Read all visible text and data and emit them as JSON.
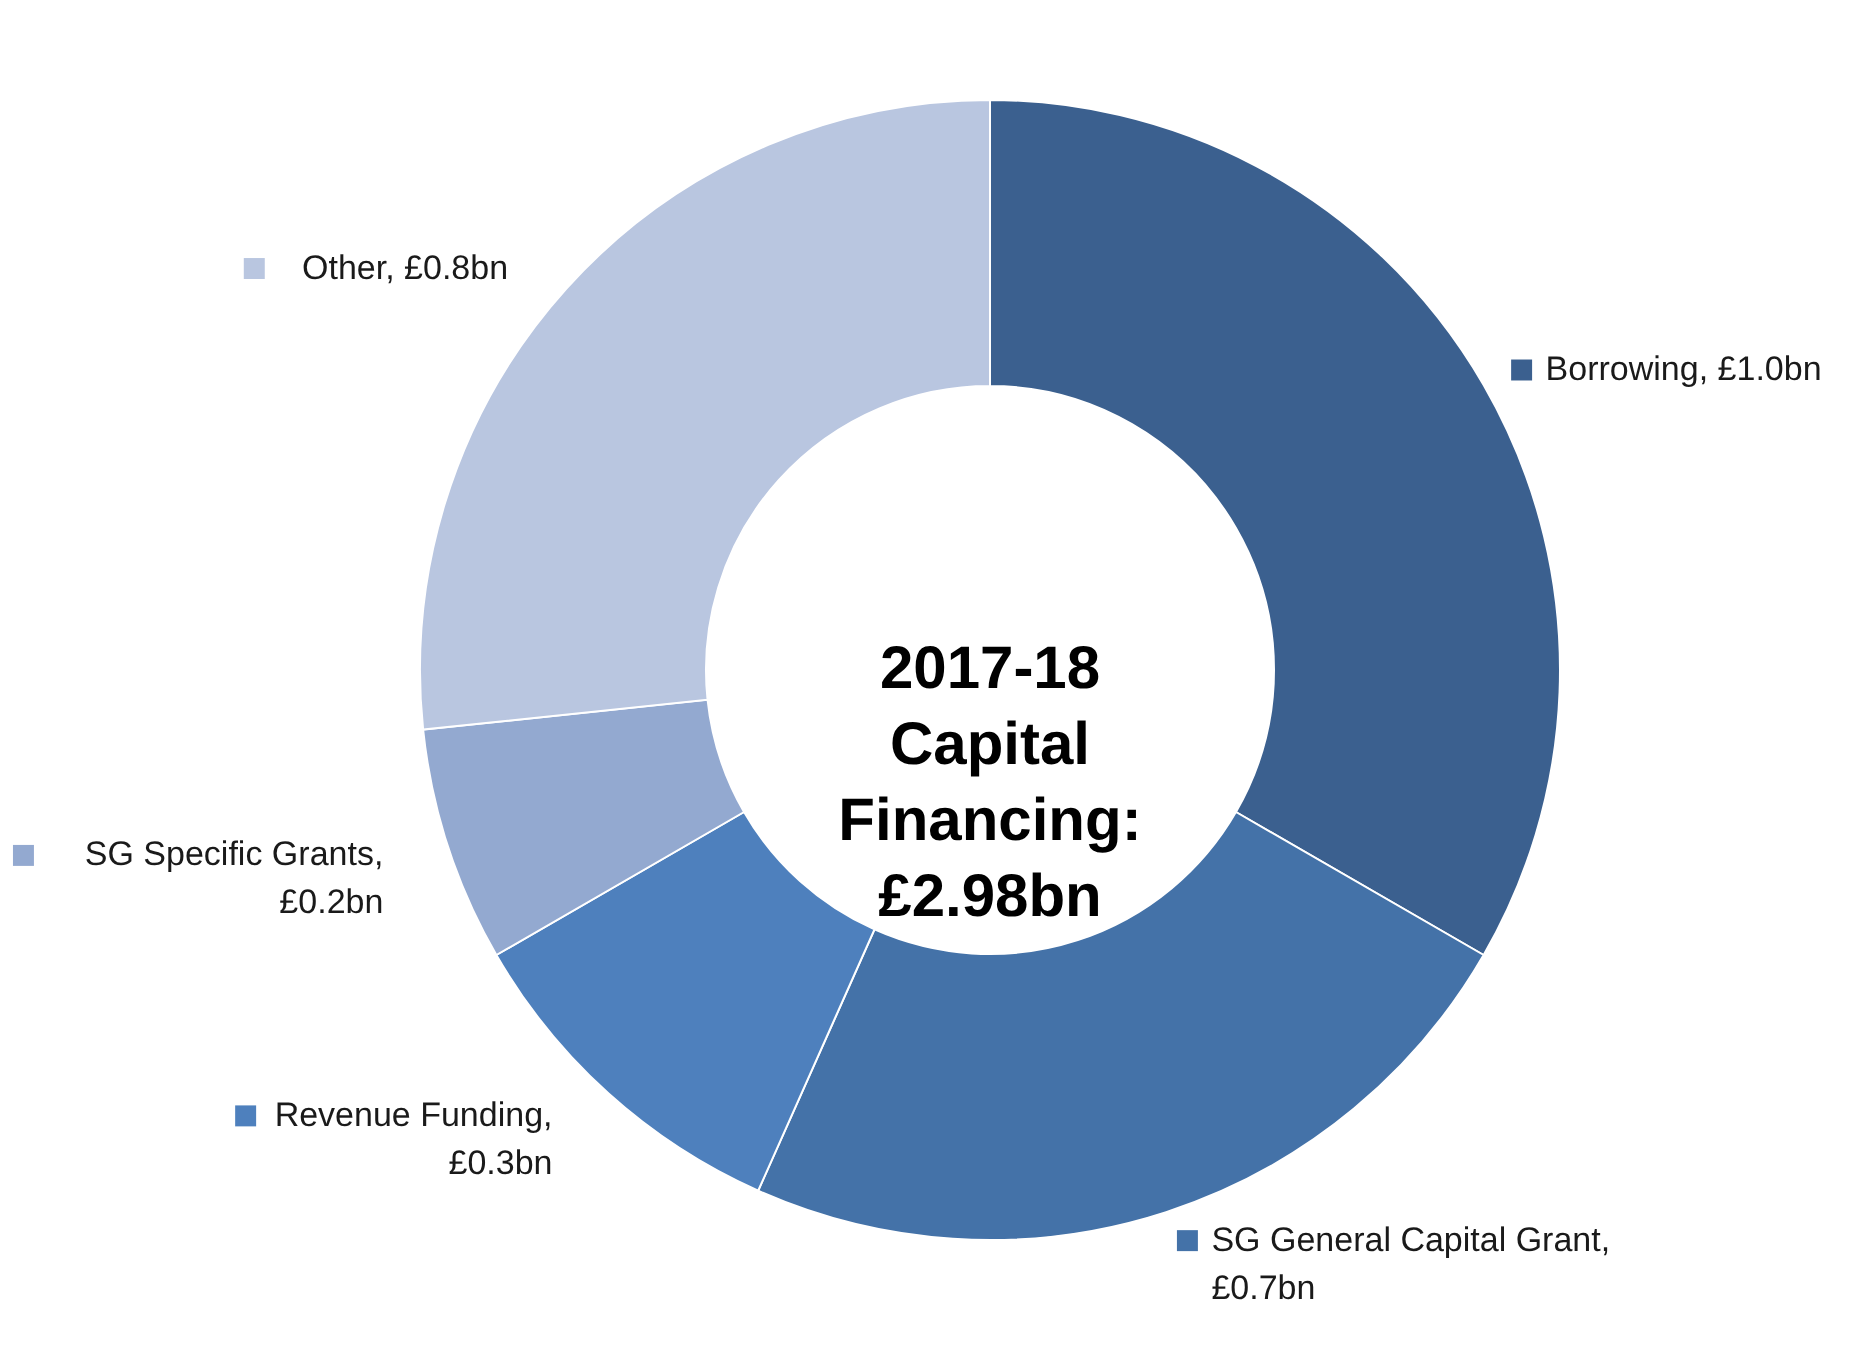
{
  "chart_data": {
    "type": "donut",
    "title": "2017-18 Capital Financing: £2.98bn",
    "categories": [
      "Borrowing, £1.0bn",
      "SG General Capital Grant, £0.7bn",
      "Revenue Funding, £0.3bn",
      "SG Specific Grants, £0.2bn",
      "Other, £0.8bn"
    ],
    "values": [
      1.0,
      0.7,
      0.3,
      0.2,
      0.8
    ],
    "colors": [
      "#3b608f",
      "#4472a8",
      "#4e80bd",
      "#93a9d0",
      "#b9c6e0"
    ],
    "legend": "left"
  }
}
